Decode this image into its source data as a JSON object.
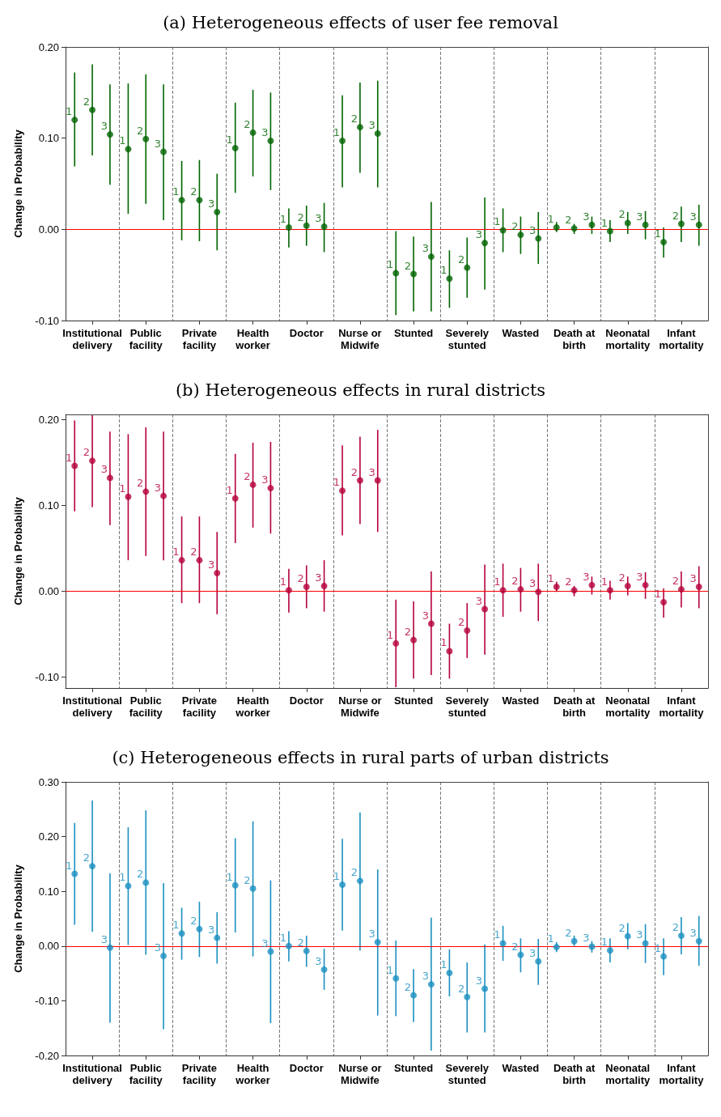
{
  "chart_data": [
    {
      "type": "scatter",
      "title": "(a) Heterogeneous effects of user fee removal",
      "ylabel": "Change in Probability",
      "categories": [
        "Institutional\ndelivery",
        "Public\nfacility",
        "Private\nfacility",
        "Health\nworker",
        "Doctor",
        "Nurse or\nMidwife",
        "Stunted",
        "Severely\nstunted",
        "Wasted",
        "Death at\nbirth",
        "Neonatal\nmortality",
        "Infant\nmortality"
      ],
      "ylim": [
        -0.1,
        0.2
      ],
      "yticks": [
        {
          "value": -0.1,
          "label": "-0.10"
        },
        {
          "value": 0,
          "label": "0.00"
        },
        {
          "value": 0.1,
          "label": "0.10"
        },
        {
          "value": 0.2,
          "label": "0.20"
        }
      ],
      "grid": "x",
      "legend": false,
      "marker": "circle",
      "ref_lines": [
        {
          "axis": "y",
          "value": 0,
          "color": "#ff0000"
        }
      ],
      "series": [
        {
          "name": "1",
          "color": "#006400",
          "values": [
            0.12,
            0.088,
            0.032,
            0.089,
            0.002,
            0.097,
            -0.048,
            -0.054,
            -0.001,
            0.002,
            -0.002,
            -0.014
          ],
          "errors": [
            [
              0.069,
              0.172
            ],
            [
              0.017,
              0.16
            ],
            [
              -0.012,
              0.075
            ],
            [
              0.04,
              0.139
            ],
            [
              -0.02,
              0.023
            ],
            [
              0.046,
              0.147
            ],
            [
              -0.094,
              -0.002
            ],
            [
              -0.086,
              -0.023
            ],
            [
              -0.025,
              0.023
            ],
            [
              -0.003,
              0.008
            ],
            [
              -0.014,
              0.01
            ],
            [
              -0.031,
              0.002
            ]
          ]
        },
        {
          "name": "2",
          "color": "#006400",
          "values": [
            0.131,
            0.099,
            0.032,
            0.106,
            0.004,
            0.112,
            -0.049,
            -0.042,
            -0.006,
            0.001,
            0.007,
            0.006
          ],
          "errors": [
            [
              0.081,
              0.181
            ],
            [
              0.028,
              0.17
            ],
            [
              -0.013,
              0.076
            ],
            [
              0.058,
              0.153
            ],
            [
              -0.018,
              0.026
            ],
            [
              0.062,
              0.161
            ],
            [
              -0.09,
              -0.008
            ],
            [
              -0.075,
              -0.009
            ],
            [
              -0.027,
              0.014
            ],
            [
              -0.005,
              0.006
            ],
            [
              -0.005,
              0.019
            ],
            [
              -0.014,
              0.025
            ]
          ]
        },
        {
          "name": "3",
          "color": "#006400",
          "values": [
            0.104,
            0.085,
            0.019,
            0.097,
            0.003,
            0.105,
            -0.03,
            -0.015,
            -0.01,
            0.005,
            0.005,
            0.005
          ],
          "errors": [
            [
              0.049,
              0.159
            ],
            [
              0.01,
              0.159
            ],
            [
              -0.023,
              0.061
            ],
            [
              0.043,
              0.15
            ],
            [
              -0.025,
              0.029
            ],
            [
              0.046,
              0.163
            ],
            [
              -0.09,
              0.03
            ],
            [
              -0.066,
              0.035
            ],
            [
              -0.038,
              0.019
            ],
            [
              -0.005,
              0.014
            ],
            [
              -0.011,
              0.02
            ],
            [
              -0.018,
              0.027
            ]
          ]
        }
      ]
    },
    {
      "type": "scatter",
      "title": "(b) Heterogeneous effects in rural districts",
      "ylabel": "Change in Probability",
      "categories": [
        "Institutional\ndelivery",
        "Public\nfacility",
        "Private\nfacility",
        "Health\nworker",
        "Doctor",
        "Nurse or\nMidwife",
        "Stunted",
        "Severely\nstunted",
        "Wasted",
        "Death at\nbirth",
        "Neonatal\nmortality",
        "Infant\nmortality"
      ],
      "ylim": [
        -0.113,
        0.206
      ],
      "yticks": [
        {
          "value": -0.1,
          "label": "-0.10"
        },
        {
          "value": 0,
          "label": "0.00"
        },
        {
          "value": 0.1,
          "label": "0.10"
        },
        {
          "value": 0.2,
          "label": "0.20"
        }
      ],
      "grid": "x",
      "legend": false,
      "marker": "circle",
      "ref_lines": [
        {
          "axis": "y",
          "value": 0,
          "color": "#ff0000"
        }
      ],
      "series": [
        {
          "name": "1",
          "color": "#b5003a",
          "values": [
            0.146,
            0.11,
            0.036,
            0.108,
            0.001,
            0.117,
            -0.061,
            -0.07,
            0.001,
            0.005,
            0.001,
            -0.013
          ],
          "errors": [
            [
              0.093,
              0.199
            ],
            [
              0.036,
              0.183
            ],
            [
              -0.014,
              0.087
            ],
            [
              0.056,
              0.16
            ],
            [
              -0.025,
              0.026
            ],
            [
              0.065,
              0.17
            ],
            [
              -0.112,
              -0.01
            ],
            [
              -0.102,
              -0.038
            ],
            [
              -0.03,
              0.032
            ],
            [
              -0.001,
              0.011
            ],
            [
              -0.01,
              0.012
            ],
            [
              -0.031,
              0.003
            ]
          ]
        },
        {
          "name": "2",
          "color": "#b5003a",
          "values": [
            0.152,
            0.116,
            0.036,
            0.124,
            0.005,
            0.129,
            -0.057,
            -0.046,
            0.002,
            0.001,
            0.006,
            0.002
          ],
          "errors": [
            [
              0.098,
              0.205
            ],
            [
              0.041,
              0.191
            ],
            [
              -0.014,
              0.087
            ],
            [
              0.074,
              0.173
            ],
            [
              -0.02,
              0.03
            ],
            [
              0.078,
              0.18
            ],
            [
              -0.102,
              -0.012
            ],
            [
              -0.078,
              -0.014
            ],
            [
              -0.024,
              0.027
            ],
            [
              -0.006,
              0.006
            ],
            [
              -0.005,
              0.017
            ],
            [
              -0.019,
              0.023
            ]
          ]
        },
        {
          "name": "3",
          "color": "#b5003a",
          "values": [
            0.132,
            0.111,
            0.021,
            0.12,
            0.006,
            0.129,
            -0.038,
            -0.021,
            -0.001,
            0.007,
            0.007,
            0.005
          ],
          "errors": [
            [
              0.077,
              0.186
            ],
            [
              0.036,
              0.186
            ],
            [
              -0.027,
              0.069
            ],
            [
              0.067,
              0.174
            ],
            [
              -0.024,
              0.036
            ],
            [
              0.069,
              0.188
            ],
            [
              -0.098,
              0.023
            ],
            [
              -0.074,
              0.031
            ],
            [
              -0.035,
              0.032
            ],
            [
              -0.004,
              0.017
            ],
            [
              -0.009,
              0.022
            ],
            [
              -0.02,
              0.029
            ]
          ]
        }
      ]
    },
    {
      "type": "scatter",
      "title": "(c) Heterogeneous effects in rural parts of urban districts",
      "ylabel": "Change in Probability",
      "categories": [
        "Institutional\ndelivery",
        "Public\nfacility",
        "Private\nfacility",
        "Health\nworker",
        "Doctor",
        "Nurse or\nMidwife",
        "Stunted",
        "Severely\nstunted",
        "Wasted",
        "Death at\nbirth",
        "Neonatal\nmortality",
        "Infant\nmortality"
      ],
      "ylim": [
        -0.2,
        0.3
      ],
      "yticks": [
        {
          "value": -0.2,
          "label": "-0.20"
        },
        {
          "value": -0.1,
          "label": "-0.10"
        },
        {
          "value": 0,
          "label": "0.00"
        },
        {
          "value": 0.1,
          "label": "0.10"
        },
        {
          "value": 0.2,
          "label": "0.20"
        },
        {
          "value": 0.3,
          "label": "0.30"
        }
      ],
      "grid": "x",
      "legend": false,
      "marker": "circle",
      "ref_lines": [
        {
          "axis": "y",
          "value": 0,
          "color": "#ff0000"
        }
      ],
      "series": [
        {
          "name": "1",
          "color": "#1a90c0",
          "values": [
            0.132,
            0.11,
            0.023,
            0.111,
            0.0,
            0.112,
            -0.059,
            -0.049,
            0.005,
            -0.002,
            -0.008,
            -0.019
          ],
          "errors": [
            [
              0.039,
              0.225
            ],
            [
              0.002,
              0.217
            ],
            [
              -0.025,
              0.07
            ],
            [
              0.025,
              0.197
            ],
            [
              -0.028,
              0.027
            ],
            [
              0.028,
              0.196
            ],
            [
              -0.128,
              0.01
            ],
            [
              -0.092,
              -0.006
            ],
            [
              -0.027,
              0.037
            ],
            [
              -0.011,
              0.007
            ],
            [
              -0.03,
              0.014
            ],
            [
              -0.053,
              0.014
            ]
          ]
        },
        {
          "name": "2",
          "color": "#1a90c0",
          "values": [
            0.146,
            0.116,
            0.031,
            0.105,
            -0.009,
            0.119,
            -0.09,
            -0.093,
            -0.016,
            0.009,
            0.018,
            0.019
          ],
          "errors": [
            [
              0.026,
              0.266
            ],
            [
              -0.016,
              0.248
            ],
            [
              -0.02,
              0.081
            ],
            [
              -0.019,
              0.228
            ],
            [
              -0.038,
              0.019
            ],
            [
              -0.008,
              0.244
            ],
            [
              -0.139,
              -0.042
            ],
            [
              -0.158,
              -0.03
            ],
            [
              -0.048,
              0.014
            ],
            [
              0.0,
              0.019
            ],
            [
              -0.006,
              0.042
            ],
            [
              -0.015,
              0.053
            ]
          ]
        },
        {
          "name": "3",
          "color": "#1a90c0",
          "values": [
            -0.003,
            -0.018,
            0.015,
            -0.01,
            -0.043,
            0.007,
            -0.07,
            -0.078,
            -0.028,
            -0.001,
            0.005,
            0.009
          ],
          "errors": [
            [
              -0.14,
              0.133
            ],
            [
              -0.152,
              0.115
            ],
            [
              -0.032,
              0.062
            ],
            [
              -0.141,
              0.12
            ],
            [
              -0.08,
              -0.005
            ],
            [
              -0.127,
              0.14
            ],
            [
              -0.191,
              0.052
            ],
            [
              -0.158,
              0.003
            ],
            [
              -0.071,
              0.013
            ],
            [
              -0.012,
              0.009
            ],
            [
              -0.031,
              0.04
            ],
            [
              -0.036,
              0.055
            ]
          ]
        }
      ]
    }
  ]
}
